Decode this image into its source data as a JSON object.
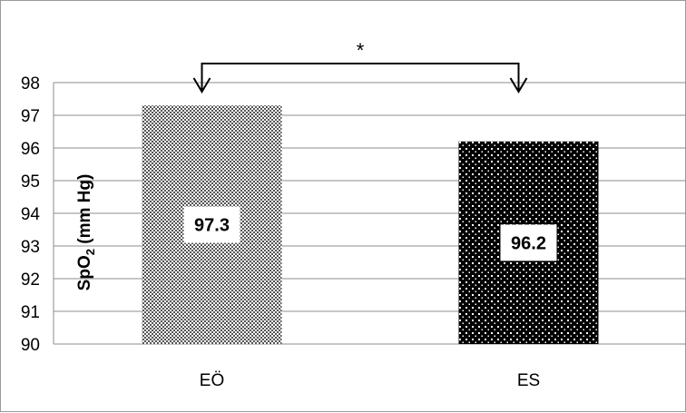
{
  "chart_data": {
    "type": "bar",
    "categories": [
      "EÖ",
      "ES"
    ],
    "values": [
      97.3,
      96.2
    ],
    "data_labels": [
      "97.3",
      "96.2"
    ],
    "ylabel": "SpO",
    "ylabel_sub": "2",
    "ylabel_unit": " (mm Hg)",
    "ylim": [
      90,
      98
    ],
    "yticks": [
      "90",
      "91",
      "92",
      "93",
      "94",
      "95",
      "96",
      "97",
      "98"
    ],
    "grid": true,
    "significance_marker": "*",
    "bar_patterns": [
      "checkered",
      "dotted-black"
    ]
  }
}
